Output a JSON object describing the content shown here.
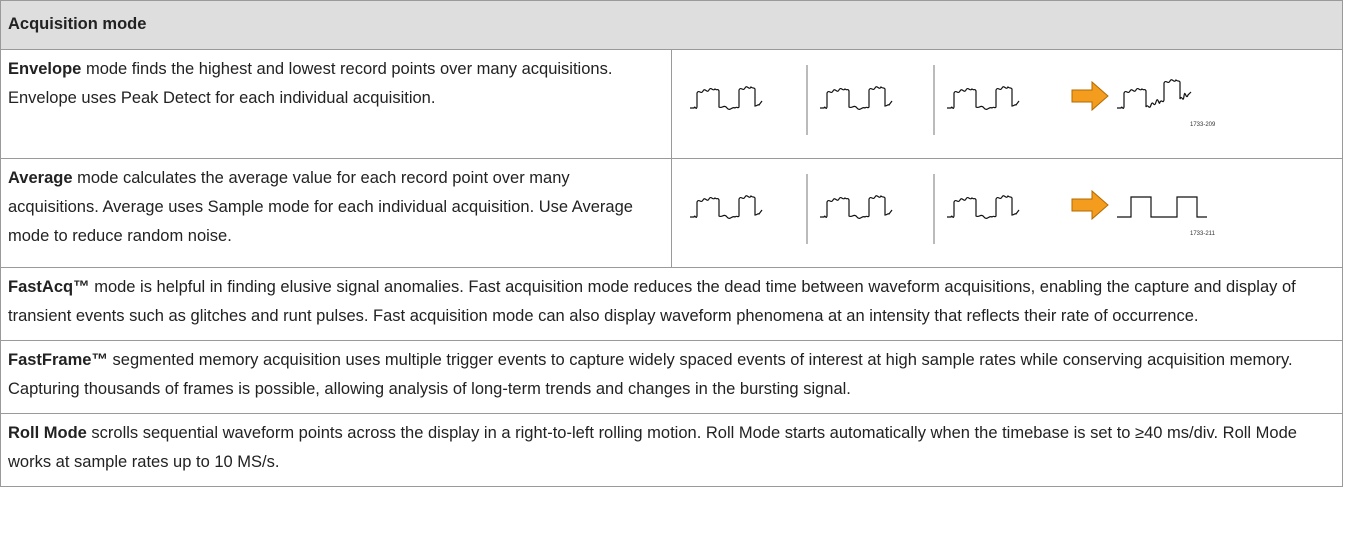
{
  "header": {
    "title": "Acquisition mode"
  },
  "rows": [
    {
      "term": "Envelope",
      "text": "mode finds the highest and lowest record points over many acquisitions. Envelope uses Peak Detect for each individual acquisition.",
      "figure_label": "1733-209"
    },
    {
      "term": "Average",
      "text": "mode calculates the average value for each record point over many acquisitions. Average uses Sample mode for each individual acquisition. Use Average mode to reduce random noise.",
      "figure_label": "1733-211"
    },
    {
      "term": "FastAcq™",
      "text": "mode is helpful in finding elusive signal anomalies. Fast acquisition mode reduces the dead time between waveform acquisitions, enabling the capture and display of transient events such as glitches and runt pulses. Fast acquisition mode can also display waveform phenomena at an intensity that reflects their rate of occurrence."
    },
    {
      "term": "FastFrame™",
      "text": "segmented memory acquisition uses multiple trigger events to capture widely spaced events of interest at high sample rates while conserving acquisition memory. Capturing thousands of frames is possible, allowing analysis of long-term trends and changes in the bursting signal."
    },
    {
      "term": "Roll Mode",
      "text": "scrolls sequential waveform points across the display in a right-to-left rolling motion. Roll Mode starts automatically when the timebase is set to ≥40 ms/div. Roll Mode works at sample rates up to 10 MS/s."
    }
  ]
}
